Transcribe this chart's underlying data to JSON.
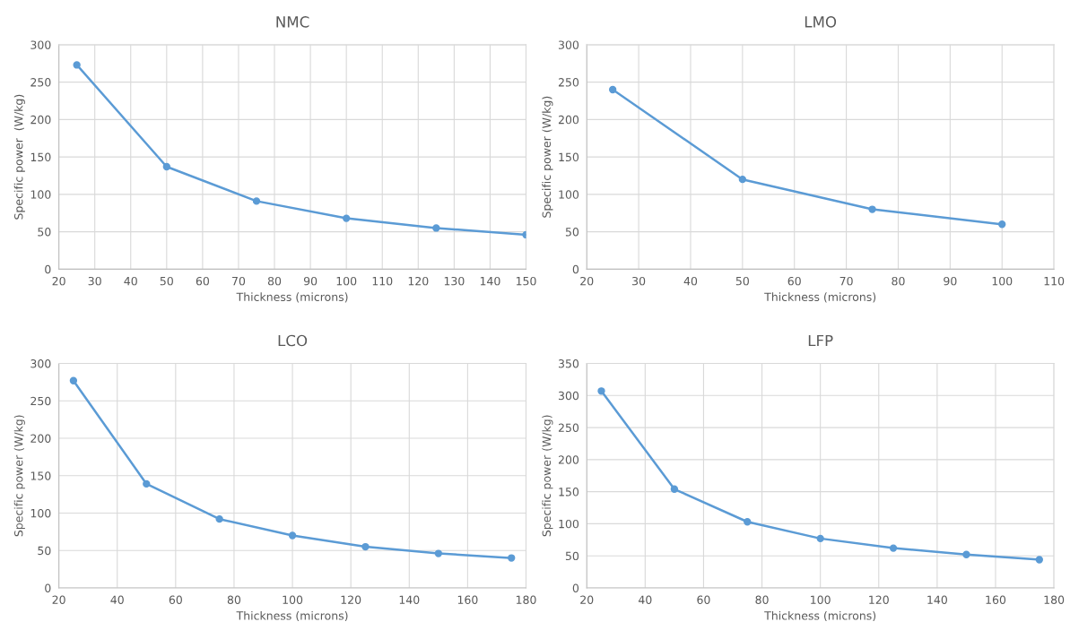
{
  "chart_data": [
    {
      "type": "line",
      "title": "NMC",
      "xlabel": "Thickness (microns)",
      "ylabel": "Specific power  (W/kg)",
      "x": [
        25,
        50,
        75,
        100,
        125,
        150
      ],
      "series": [
        {
          "color": "#5b9bd5",
          "values": [
            273,
            137,
            91,
            68,
            55,
            46
          ]
        }
      ],
      "xlim": [
        20,
        150
      ],
      "xticks": [
        20,
        30,
        40,
        50,
        60,
        70,
        80,
        90,
        100,
        110,
        120,
        130,
        140,
        150
      ],
      "ylim": [
        0,
        300
      ],
      "yticks": [
        0,
        50,
        100,
        150,
        200,
        250,
        300
      ],
      "grid": true,
      "marker": "circle",
      "line_style": "solid"
    },
    {
      "type": "line",
      "title": "LMO",
      "xlabel": "Thickness (microns)",
      "ylabel": "Specific power (W/kg)",
      "x": [
        25,
        50,
        75,
        100
      ],
      "series": [
        {
          "color": "#5b9bd5",
          "values": [
            240,
            120,
            80,
            60
          ]
        }
      ],
      "xlim": [
        20,
        110
      ],
      "xticks": [
        20,
        30,
        40,
        50,
        60,
        70,
        80,
        90,
        100,
        110
      ],
      "ylim": [
        0,
        300
      ],
      "yticks": [
        0,
        50,
        100,
        150,
        200,
        250,
        300
      ],
      "grid": true,
      "marker": "circle",
      "line_style": "solid"
    },
    {
      "type": "line",
      "title": "LCO",
      "xlabel": "Thickness (microns)",
      "ylabel": "Specific power (W/kg)",
      "x": [
        25,
        50,
        75,
        100,
        125,
        150,
        175
      ],
      "series": [
        {
          "color": "#5b9bd5",
          "values": [
            277,
            139,
            92,
            70,
            55,
            46,
            40
          ]
        }
      ],
      "xlim": [
        20,
        180
      ],
      "xticks": [
        20,
        40,
        60,
        80,
        100,
        120,
        140,
        160,
        180
      ],
      "ylim": [
        0,
        300
      ],
      "yticks": [
        0,
        50,
        100,
        150,
        200,
        250,
        300
      ],
      "grid": true,
      "marker": "circle",
      "line_style": "solid"
    },
    {
      "type": "line",
      "title": "LFP",
      "xlabel": "Thickness (microns)",
      "ylabel": "Specific power (W/kg)",
      "x": [
        25,
        50,
        75,
        100,
        125,
        150,
        175
      ],
      "series": [
        {
          "color": "#5b9bd5",
          "values": [
            307,
            154,
            103,
            77,
            62,
            52,
            44
          ]
        }
      ],
      "xlim": [
        20,
        180
      ],
      "xticks": [
        20,
        40,
        60,
        80,
        100,
        120,
        140,
        160,
        180
      ],
      "ylim": [
        0,
        350
      ],
      "yticks": [
        0,
        50,
        100,
        150,
        200,
        250,
        300,
        350
      ],
      "grid": true,
      "marker": "circle",
      "line_style": "solid"
    }
  ]
}
